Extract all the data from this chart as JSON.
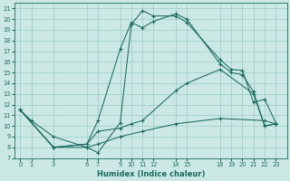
{
  "xlabel": "Humidex (Indice chaleur)",
  "bg_color": "#cce8e5",
  "grid_color": "#99ccc8",
  "line_color": "#1a6b5e",
  "xlim": [
    -0.5,
    24
  ],
  "ylim": [
    7,
    21.5
  ],
  "xticks": [
    0,
    1,
    3,
    6,
    7,
    9,
    10,
    11,
    12,
    14,
    15,
    18,
    19,
    20,
    21,
    22,
    23
  ],
  "yticks": [
    7,
    8,
    9,
    10,
    11,
    12,
    13,
    14,
    15,
    16,
    17,
    18,
    19,
    20,
    21
  ],
  "line1_x": [
    0,
    1,
    3,
    6,
    7,
    9,
    10,
    11,
    12,
    14,
    15,
    18,
    19,
    20,
    21,
    22,
    23
  ],
  "line1_y": [
    11.5,
    10.5,
    9.0,
    8.0,
    7.5,
    10.3,
    19.5,
    20.8,
    20.3,
    20.3,
    19.7,
    16.2,
    15.3,
    15.2,
    12.2,
    12.5,
    10.3
  ],
  "line2_x": [
    0,
    3,
    6,
    7,
    9,
    10,
    11,
    12,
    14,
    15,
    18,
    19,
    20,
    21,
    22,
    23
  ],
  "line2_y": [
    11.5,
    8.0,
    8.3,
    10.5,
    17.2,
    19.7,
    19.2,
    19.8,
    20.5,
    20.0,
    15.8,
    15.0,
    14.8,
    13.2,
    10.0,
    10.2
  ],
  "line3_x": [
    0,
    3,
    6,
    7,
    9,
    10,
    11,
    14,
    15,
    18,
    21,
    22,
    23
  ],
  "line3_y": [
    11.5,
    8.0,
    8.3,
    9.5,
    9.8,
    10.2,
    10.5,
    13.3,
    14.0,
    15.3,
    13.0,
    10.0,
    10.2
  ],
  "line4_x": [
    0,
    3,
    6,
    7,
    9,
    11,
    14,
    18,
    22,
    23
  ],
  "line4_y": [
    11.5,
    8.0,
    8.0,
    8.3,
    9.0,
    9.5,
    10.2,
    10.7,
    10.5,
    10.2
  ]
}
